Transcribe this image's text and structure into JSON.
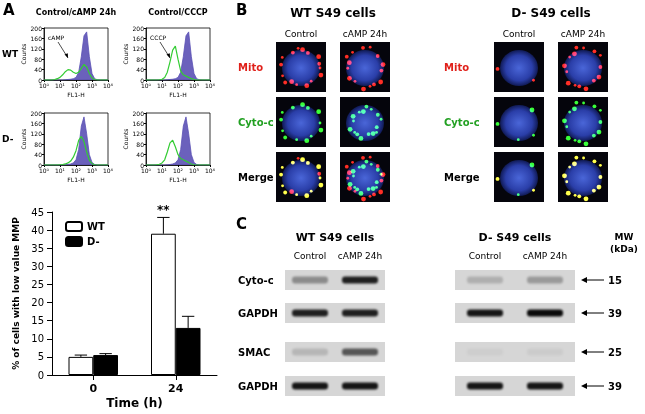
{
  "panel_a": {
    "label": "A",
    "column_titles": [
      "Control/cAMP 24h",
      "Control/CCCP"
    ],
    "row_labels": [
      "WT",
      "D-"
    ]
  },
  "chart_data": [
    {
      "type": "line",
      "log": "x",
      "xlabel": "FL1-H",
      "ylabel": "Counts",
      "x": [
        1,
        1.47,
        2.15,
        3.16,
        4.64,
        6.81,
        10,
        14.7,
        21.5,
        31.6,
        46.4,
        68.1,
        100,
        147,
        215,
        316,
        464,
        681,
        1000,
        1468,
        2154,
        3162,
        4642,
        6813,
        10000
      ],
      "xlim": [
        1,
        10000
      ],
      "xticks": [
        {
          "value": 1,
          "label": "10⁰"
        },
        {
          "value": 10,
          "label": "10¹"
        },
        {
          "value": 100,
          "label": "10²"
        },
        {
          "value": 1000,
          "label": "10³"
        },
        {
          "value": 10000,
          "label": "10⁴"
        }
      ],
      "ylim": [
        0,
        200
      ],
      "yticks": [
        0,
        40,
        80,
        120,
        160,
        200
      ],
      "series": [
        {
          "type": "area",
          "color": "#5b50b5",
          "values": [
            0,
            0,
            0,
            0,
            0,
            0,
            0,
            0,
            1,
            2,
            3,
            5,
            10,
            30,
            90,
            170,
            185,
            90,
            25,
            5,
            1,
            0,
            0,
            0,
            0
          ]
        },
        {
          "type": "line",
          "color": "#33cc33",
          "values": [
            0,
            0,
            0,
            0,
            2,
            5,
            10,
            20,
            32,
            40,
            38,
            30,
            25,
            30,
            45,
            60,
            50,
            25,
            8,
            2,
            0,
            0,
            0,
            0,
            0
          ]
        }
      ],
      "annotations": [
        "cAMP"
      ]
    },
    {
      "type": "line",
      "log": "x",
      "xlabel": "FL1-H",
      "ylabel": "Counts",
      "x": [
        1,
        1.47,
        2.15,
        3.16,
        4.64,
        6.81,
        10,
        14.7,
        21.5,
        31.6,
        46.4,
        68.1,
        100,
        147,
        215,
        316,
        464,
        681,
        1000,
        1468,
        2154,
        3162,
        4642,
        6813,
        10000
      ],
      "xlim": [
        1,
        10000
      ],
      "xticks": [
        {
          "value": 1,
          "label": "10⁰"
        },
        {
          "value": 10,
          "label": "10¹"
        },
        {
          "value": 100,
          "label": "10²"
        },
        {
          "value": 1000,
          "label": "10³"
        },
        {
          "value": 10000,
          "label": "10⁴"
        }
      ],
      "ylim": [
        0,
        200
      ],
      "yticks": [
        0,
        40,
        80,
        120,
        160,
        200
      ],
      "series": [
        {
          "type": "area",
          "color": "#5b50b5",
          "values": [
            0,
            0,
            0,
            0,
            0,
            0,
            0,
            0,
            1,
            2,
            3,
            5,
            10,
            30,
            90,
            170,
            185,
            90,
            25,
            5,
            1,
            0,
            0,
            0,
            0
          ]
        },
        {
          "type": "line",
          "color": "#33cc33",
          "values": [
            0,
            0,
            0,
            0,
            0,
            1,
            3,
            10,
            30,
            70,
            115,
            130,
            80,
            35,
            20,
            15,
            10,
            5,
            2,
            0,
            0,
            0,
            0,
            0,
            0
          ]
        }
      ],
      "annotations": [
        "CCCP"
      ]
    },
    {
      "type": "line",
      "log": "x",
      "xlabel": "FL1-H",
      "ylabel": "Counts",
      "x": [
        1,
        1.47,
        2.15,
        3.16,
        4.64,
        6.81,
        10,
        14.7,
        21.5,
        31.6,
        46.4,
        68.1,
        100,
        147,
        215,
        316,
        464,
        681,
        1000,
        1468,
        2154,
        3162,
        4642,
        6813,
        10000
      ],
      "xlim": [
        1,
        10000
      ],
      "xticks": [
        {
          "value": 1,
          "label": "10⁰"
        },
        {
          "value": 10,
          "label": "10¹"
        },
        {
          "value": 100,
          "label": "10²"
        },
        {
          "value": 1000,
          "label": "10³"
        },
        {
          "value": 10000,
          "label": "10⁴"
        }
      ],
      "ylim": [
        0,
        200
      ],
      "yticks": [
        0,
        40,
        80,
        120,
        160,
        200
      ],
      "series": [
        {
          "type": "area",
          "color": "#5b50b5",
          "values": [
            0,
            0,
            0,
            0,
            0,
            0,
            0,
            0,
            1,
            2,
            4,
            8,
            20,
            60,
            150,
            185,
            120,
            40,
            10,
            2,
            0,
            0,
            0,
            0,
            0
          ]
        },
        {
          "type": "line",
          "color": "#33cc33",
          "values": [
            0,
            0,
            0,
            0,
            0,
            0,
            1,
            2,
            4,
            8,
            15,
            30,
            55,
            95,
            110,
            90,
            50,
            18,
            5,
            1,
            0,
            0,
            0,
            0,
            0
          ]
        }
      ]
    },
    {
      "type": "line",
      "log": "x",
      "xlabel": "FL1-H",
      "ylabel": "Counts",
      "x": [
        1,
        1.47,
        2.15,
        3.16,
        4.64,
        6.81,
        10,
        14.7,
        21.5,
        31.6,
        46.4,
        68.1,
        100,
        147,
        215,
        316,
        464,
        681,
        1000,
        1468,
        2154,
        3162,
        4642,
        6813,
        10000
      ],
      "xlim": [
        1,
        10000
      ],
      "xticks": [
        {
          "value": 1,
          "label": "10⁰"
        },
        {
          "value": 10,
          "label": "10¹"
        },
        {
          "value": 100,
          "label": "10²"
        },
        {
          "value": 1000,
          "label": "10³"
        },
        {
          "value": 10000,
          "label": "10⁴"
        }
      ],
      "ylim": [
        0,
        200
      ],
      "yticks": [
        0,
        40,
        80,
        120,
        160,
        200
      ],
      "series": [
        {
          "type": "area",
          "color": "#5b50b5",
          "values": [
            0,
            0,
            0,
            0,
            0,
            0,
            0,
            0,
            1,
            2,
            4,
            8,
            20,
            60,
            150,
            185,
            120,
            40,
            10,
            2,
            0,
            0,
            0,
            0,
            0
          ]
        },
        {
          "type": "line",
          "color": "#33cc33",
          "values": [
            0,
            0,
            0,
            0,
            1,
            3,
            8,
            20,
            50,
            85,
            95,
            70,
            40,
            25,
            20,
            15,
            10,
            4,
            1,
            0,
            0,
            0,
            0,
            0,
            0
          ]
        }
      ]
    },
    {
      "type": "bar",
      "categories": [
        "0",
        "24"
      ],
      "xlabel": "Time (h)",
      "ylabel": "% of cells with low value MMP",
      "ylim": [
        0,
        45
      ],
      "yticks": [
        0,
        5,
        10,
        15,
        20,
        25,
        30,
        35,
        40,
        45
      ],
      "legend": "upper left",
      "grid": false,
      "series": [
        {
          "name": "WT",
          "color": "#ffffff",
          "values": [
            5,
            39
          ],
          "errors": [
            0.5,
            4.5
          ]
        },
        {
          "name": "D-",
          "color": "#000000",
          "values": [
            5.5,
            13
          ],
          "errors": [
            0.4,
            3.2
          ]
        }
      ],
      "annotations": [
        {
          "text": "**",
          "category": "24",
          "series": "WT"
        }
      ]
    }
  ],
  "panel_b": {
    "label": "B",
    "groups": [
      "WT S49 cells",
      "D- S49 cells"
    ],
    "columns": [
      "Control",
      "cAMP 24h"
    ],
    "rows": [
      {
        "label": "Mito",
        "color": "#e0201a"
      },
      {
        "label": "Cyto-c",
        "color": "#22a022"
      },
      {
        "label": "Merge",
        "color": "#000000"
      }
    ]
  },
  "panel_c": {
    "label": "C",
    "groups": [
      "WT S49 cells",
      "D- S49 cells"
    ],
    "lanes": [
      "Control",
      "cAMP 24h"
    ],
    "mw_header": [
      "MW",
      "(kDa)"
    ],
    "rows": [
      {
        "label": "Cyto-c",
        "mw": 15
      },
      {
        "label": "GAPDH",
        "mw": 39
      },
      {
        "label": "SMAC",
        "mw": 25
      },
      {
        "label": "GAPDH",
        "mw": 39
      }
    ]
  }
}
